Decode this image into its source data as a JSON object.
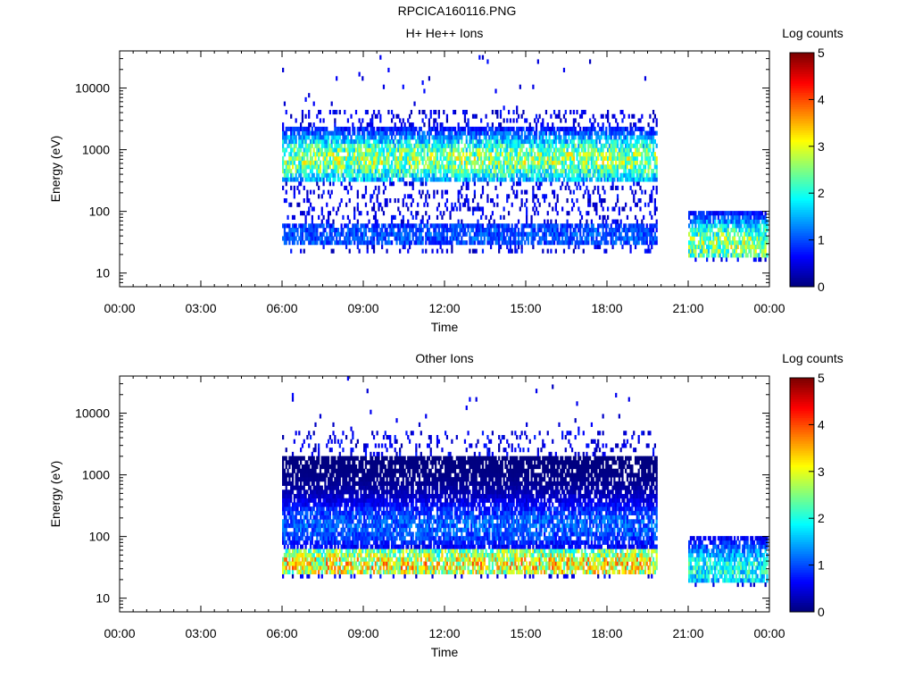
{
  "page_title": "RPCICA160116.PNG",
  "chart_data": [
    {
      "type": "heatmap",
      "title": "H+ He++ Ions",
      "xlabel": "Time",
      "ylabel": "Energy (eV)",
      "yscale": "log",
      "x_ticks": [
        "00:00",
        "03:00",
        "06:00",
        "09:00",
        "12:00",
        "15:00",
        "18:00",
        "21:00",
        "00:00"
      ],
      "xlim_hours": [
        0,
        24
      ],
      "y_ticks": [
        "10",
        "100",
        "1000",
        "10000"
      ],
      "ylim_eV": [
        6,
        40000
      ],
      "colorbar": {
        "label": "Log counts",
        "ticks": [
          "0",
          "1",
          "2",
          "3",
          "4",
          "5"
        ],
        "range": [
          0,
          5
        ],
        "colormap": "jet"
      },
      "coverage": [
        {
          "t_start_h": 6.0,
          "t_end_h": 19.8,
          "e_min_eV": 20,
          "e_max_eV": 4500
        },
        {
          "t_start_h": 21.0,
          "t_end_h": 23.9,
          "e_min_eV": 15,
          "e_max_eV": 100
        }
      ],
      "bands": [
        {
          "t_start_h": 6.0,
          "t_end_h": 19.8,
          "e_min_eV": 300,
          "e_max_eV": 2500,
          "peak_log_counts": 3.0,
          "peak_eV": 700
        },
        {
          "t_start_h": 6.0,
          "t_end_h": 19.8,
          "e_min_eV": 30,
          "e_max_eV": 60,
          "peak_log_counts": 1.2,
          "peak_eV": 40
        },
        {
          "t_start_h": 21.0,
          "t_end_h": 23.9,
          "e_min_eV": 18,
          "e_max_eV": 95,
          "peak_log_counts": 3.0,
          "peak_eV": 30
        }
      ]
    },
    {
      "type": "heatmap",
      "title": "Other Ions",
      "xlabel": "Time",
      "ylabel": "Energy (eV)",
      "yscale": "log",
      "x_ticks": [
        "00:00",
        "03:00",
        "06:00",
        "09:00",
        "12:00",
        "15:00",
        "18:00",
        "21:00",
        "00:00"
      ],
      "xlim_hours": [
        0,
        24
      ],
      "y_ticks": [
        "10",
        "100",
        "1000",
        "10000"
      ],
      "ylim_eV": [
        6,
        40000
      ],
      "colorbar": {
        "label": "Log counts",
        "ticks": [
          "0",
          "1",
          "2",
          "3",
          "4",
          "5"
        ],
        "range": [
          0,
          5
        ],
        "colormap": "jet"
      },
      "coverage": [
        {
          "t_start_h": 6.0,
          "t_end_h": 19.8,
          "e_min_eV": 20,
          "e_max_eV": 5000
        },
        {
          "t_start_h": 21.0,
          "t_end_h": 23.9,
          "e_min_eV": 15,
          "e_max_eV": 100
        }
      ],
      "bands": [
        {
          "t_start_h": 6.0,
          "t_end_h": 19.8,
          "e_min_eV": 25,
          "e_max_eV": 60,
          "peak_log_counts": 3.6,
          "peak_eV": 35
        },
        {
          "t_start_h": 6.0,
          "t_end_h": 19.8,
          "e_min_eV": 60,
          "e_max_eV": 2000,
          "peak_log_counts": 1.3,
          "peak_eV": 150
        },
        {
          "t_start_h": 21.0,
          "t_end_h": 23.9,
          "e_min_eV": 18,
          "e_max_eV": 95,
          "peak_log_counts": 2.3,
          "peak_eV": 30
        }
      ]
    }
  ]
}
